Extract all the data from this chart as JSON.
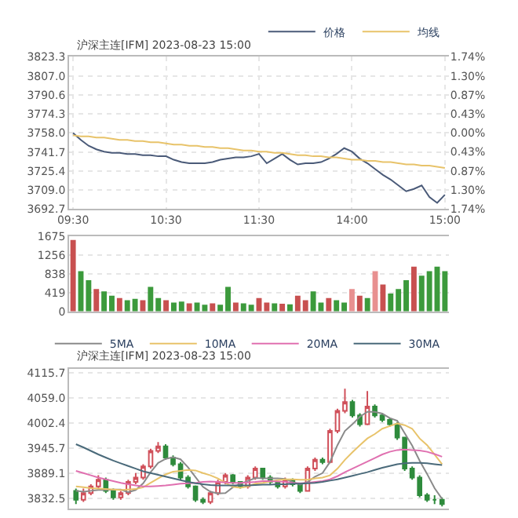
{
  "chart_data": [
    {
      "type": "line",
      "title": "沪深主连[IFM] 2023-08-23 15:00",
      "legend": "top right",
      "grid": true,
      "marker": "none",
      "categories": [
        "09:30",
        null,
        null,
        null,
        null,
        null,
        null,
        null,
        null,
        null,
        null,
        null,
        "10:30",
        null,
        null,
        null,
        null,
        null,
        null,
        null,
        null,
        null,
        null,
        null,
        "11:30",
        null,
        null,
        null,
        null,
        null,
        null,
        null,
        null,
        null,
        null,
        null,
        "14:00",
        null,
        null,
        null,
        null,
        null,
        null,
        null,
        null,
        null,
        null,
        null,
        "15:00"
      ],
      "series": [
        {
          "name": "价格",
          "color": "#4a5a78",
          "values": [
            3758,
            3752,
            3747,
            3744,
            3742,
            3741,
            3741,
            3740,
            3740,
            3739,
            3739,
            3738,
            3738,
            3735,
            3733,
            3732,
            3732,
            3732,
            3733,
            3735,
            3736,
            3737,
            3737,
            3738,
            3740,
            3732,
            3736,
            3740,
            3735,
            3731,
            3732,
            3732,
            3733,
            3736,
            3740,
            3745,
            3742,
            3736,
            3732,
            3727,
            3722,
            3718,
            3713,
            3708,
            3710,
            3713,
            3703,
            3698,
            3705
          ]
        },
        {
          "name": "均线",
          "color": "#e8c36a",
          "values": [
            3756,
            3755,
            3755,
            3754,
            3754,
            3753,
            3752,
            3752,
            3751,
            3751,
            3750,
            3750,
            3749,
            3748,
            3748,
            3747,
            3747,
            3746,
            3746,
            3745,
            3745,
            3744,
            3743,
            3743,
            3742,
            3742,
            3741,
            3741,
            3740,
            3739,
            3739,
            3738,
            3738,
            3737,
            3737,
            3736,
            3735,
            3735,
            3734,
            3734,
            3733,
            3733,
            3732,
            3731,
            3731,
            3730,
            3730,
            3729,
            3728
          ]
        }
      ],
      "ylim": [
        3692.7,
        3823.3
      ],
      "yticks": [
        3692.7,
        {
          "value": 3709,
          "label": "3709.0"
        },
        3725.4,
        3741.7,
        {
          "value": 3758,
          "label": "3758.0"
        },
        3774.3,
        3790.6,
        {
          "value": 3807,
          "label": "3807.0"
        },
        3823.3
      ],
      "y2lim": [
        -1.74,
        1.74
      ],
      "y2ticks": [
        {
          "value": -1.74,
          "label": "1.74%"
        },
        {
          "value": -1.3,
          "label": "1.30%"
        },
        {
          "value": -0.87,
          "label": "0.87%"
        },
        {
          "value": -0.43,
          "label": "0.43%"
        },
        {
          "value": 0,
          "label": "0.00%"
        },
        {
          "value": 0.43,
          "label": "0.43%"
        },
        {
          "value": 0.87,
          "label": "0.87%"
        },
        {
          "value": 1.3,
          "label": "1.30%"
        },
        {
          "value": 1.74,
          "label": "1.74%"
        }
      ]
    },
    {
      "type": "bar",
      "tick_labels": "y",
      "grid": true,
      "categories": [
        null,
        null,
        null,
        null,
        null,
        null,
        null,
        null,
        null,
        null,
        null,
        null,
        null,
        null,
        null,
        null,
        null,
        null,
        null,
        null,
        null,
        null,
        null,
        null,
        null,
        null,
        null,
        null,
        null,
        null,
        null,
        null,
        null,
        null,
        null,
        null,
        null,
        null,
        null,
        null,
        null,
        null,
        null,
        null,
        null,
        null,
        null,
        null,
        null
      ],
      "values": [
        1600,
        900,
        700,
        500,
        450,
        350,
        300,
        250,
        280,
        250,
        550,
        300,
        250,
        200,
        220,
        180,
        200,
        150,
        180,
        150,
        550,
        200,
        180,
        150,
        300,
        200,
        180,
        170,
        160,
        350,
        250,
        450,
        200,
        300,
        250,
        200,
        500,
        350,
        300,
        900,
        600,
        400,
        500,
        700,
        1000,
        800,
        900,
        1000,
        900
      ],
      "colors": [
        "#c85050",
        "#3c9a3c",
        "#3c9a3c",
        "#c85050",
        "#3c9a3c",
        "#3c9a3c",
        "#c85050",
        "#3c9a3c",
        "#3c9a3c",
        "#c85050",
        "#3c9a3c",
        "#3c9a3c",
        "#c85050",
        "#3c9a3c",
        "#3c9a3c",
        "#c85050",
        "#3c9a3c",
        "#3c9a3c",
        "#c85050",
        "#3c9a3c",
        "#3c9a3c",
        "#c85050",
        "#3c9a3c",
        "#3c9a3c",
        "#c85050",
        "#c85050",
        "#3c9a3c",
        "#c85050",
        "#3c9a3c",
        "#c85050",
        "#c85050",
        "#3c9a3c",
        "#3c9a3c",
        "#c85050",
        "#3c9a3c",
        "#3c9a3c",
        "#e89090",
        "#c85050",
        "#3c9a3c",
        "#e89090",
        "#c85050",
        "#3c9a3c",
        "#3c9a3c",
        "#3c9a3c",
        "#c85050",
        "#3c9a3c",
        "#3c9a3c",
        "#3c9a3c",
        "#3c9a3c"
      ],
      "ylim": [
        0,
        1675
      ],
      "yticks": [
        0,
        419,
        838,
        1256,
        1675
      ]
    },
    {
      "type": "candlestick",
      "title": "沪深主连[IFM] 2023-08-23 15:00",
      "legend": "top right",
      "grid": true,
      "categories": [
        null,
        null,
        null,
        null,
        null,
        null,
        null,
        null,
        null,
        null,
        null,
        null,
        null,
        null,
        null,
        null,
        null,
        null,
        null,
        null,
        null,
        null,
        null,
        null,
        null,
        null,
        null,
        null,
        null,
        null,
        null,
        null,
        null,
        null,
        null,
        null,
        null,
        null,
        null,
        null,
        null,
        null,
        null,
        null,
        null,
        null,
        null,
        null,
        null,
        null
      ],
      "ohlc": [
        [
          3850,
          3855,
          3820,
          3830
        ],
        [
          3830,
          3855,
          3825,
          3845
        ],
        [
          3845,
          3865,
          3840,
          3860
        ],
        [
          3860,
          3885,
          3855,
          3875
        ],
        [
          3875,
          3880,
          3845,
          3850
        ],
        [
          3850,
          3855,
          3830,
          3835
        ],
        [
          3835,
          3850,
          3830,
          3845
        ],
        [
          3845,
          3875,
          3840,
          3870
        ],
        [
          3870,
          3890,
          3865,
          3880
        ],
        [
          3880,
          3910,
          3875,
          3905
        ],
        [
          3905,
          3945,
          3900,
          3940
        ],
        [
          3940,
          3960,
          3935,
          3950
        ],
        [
          3950,
          3955,
          3920,
          3925
        ],
        [
          3925,
          3930,
          3905,
          3910
        ],
        [
          3910,
          3915,
          3875,
          3880
        ],
        [
          3880,
          3885,
          3855,
          3860
        ],
        [
          3860,
          3862,
          3825,
          3830
        ],
        [
          3830,
          3835,
          3820,
          3825
        ],
        [
          3825,
          3850,
          3820,
          3845
        ],
        [
          3845,
          3875,
          3840,
          3870
        ],
        [
          3870,
          3890,
          3865,
          3885
        ],
        [
          3885,
          3888,
          3865,
          3870
        ],
        [
          3870,
          3872,
          3855,
          3860
        ],
        [
          3860,
          3885,
          3855,
          3880
        ],
        [
          3880,
          3905,
          3875,
          3900
        ],
        [
          3900,
          3902,
          3875,
          3880
        ],
        [
          3880,
          3885,
          3865,
          3870
        ],
        [
          3870,
          3872,
          3855,
          3860
        ],
        [
          3860,
          3880,
          3855,
          3875
        ],
        [
          3875,
          3878,
          3860,
          3865
        ],
        [
          3865,
          3868,
          3845,
          3850
        ],
        [
          3850,
          3905,
          3848,
          3900
        ],
        [
          3900,
          3925,
          3895,
          3920
        ],
        [
          3920,
          3925,
          3910,
          3915
        ],
        [
          3915,
          3990,
          3912,
          3985
        ],
        [
          3985,
          4035,
          3980,
          4030
        ],
        [
          4030,
          4080,
          4025,
          4050
        ],
        [
          4050,
          4055,
          4015,
          4020
        ],
        [
          4020,
          4025,
          3995,
          4000
        ],
        [
          4000,
          4075,
          3998,
          4040
        ],
        [
          4040,
          4045,
          4015,
          4020
        ],
        [
          4020,
          4025,
          4005,
          4010
        ],
        [
          4010,
          4015,
          3995,
          4000
        ],
        [
          4000,
          4005,
          3965,
          3970
        ],
        [
          3970,
          3972,
          3895,
          3900
        ],
        [
          3900,
          3905,
          3875,
          3880
        ],
        [
          3880,
          3885,
          3835,
          3840
        ],
        [
          3840,
          3845,
          3825,
          3830
        ],
        [
          3830,
          3840,
          3820,
          3830
        ],
        [
          3830,
          3835,
          3815,
          3820
        ]
      ],
      "series": [
        {
          "name": "5MA",
          "type": "line",
          "color": "#8a8a8a",
          "values": [
            3850,
            3848,
            3850,
            3852,
            3852,
            3853,
            3853,
            3847,
            3852,
            3867,
            3892,
            3913,
            3922,
            3926,
            3921,
            3903,
            3881,
            3859,
            3848,
            3844,
            3845,
            3858,
            3866,
            3872,
            3879,
            3878,
            3878,
            3878,
            3877,
            3870,
            3864,
            3870,
            3882,
            3890,
            3915,
            3953,
            3985,
            4000,
            4017,
            4028,
            4028,
            4024,
            4014,
            4008,
            3980,
            3952,
            3918,
            3888,
            3856,
            3832
          ]
        },
        {
          "name": "10MA",
          "type": "line",
          "color": "#e8c36a",
          "values": [
            3860,
            3858,
            3856,
            3855,
            3854,
            3853,
            3852,
            3853,
            3854,
            3858,
            3868,
            3878,
            3887,
            3893,
            3895,
            3897,
            3896,
            3890,
            3885,
            3878,
            3868,
            3859,
            3857,
            3860,
            3866,
            3868,
            3871,
            3874,
            3876,
            3876,
            3875,
            3875,
            3878,
            3880,
            3885,
            3900,
            3920,
            3937,
            3953,
            3968,
            3978,
            3990,
            3996,
            4002,
            3998,
            3990,
            3968,
            3953,
            3932,
            3910
          ]
        },
        {
          "name": "20MA",
          "type": "line",
          "color": "#e070b0",
          "values": [
            3895,
            3890,
            3885,
            3880,
            3876,
            3872,
            3868,
            3865,
            3862,
            3860,
            3860,
            3861,
            3862,
            3864,
            3866,
            3867,
            3868,
            3870,
            3871,
            3870,
            3869,
            3868,
            3868,
            3869,
            3870,
            3872,
            3872,
            3871,
            3870,
            3868,
            3867,
            3868,
            3870,
            3872,
            3876,
            3883,
            3892,
            3900,
            3908,
            3916,
            3924,
            3932,
            3938,
            3942,
            3943,
            3942,
            3941,
            3938,
            3933,
            3927
          ]
        },
        {
          "name": "30MA",
          "type": "line",
          "color": "#4a6a7a",
          "values": [
            3955,
            3948,
            3940,
            3932,
            3925,
            3918,
            3912,
            3906,
            3900,
            3894,
            3890,
            3886,
            3882,
            3878,
            3874,
            3870,
            3867,
            3865,
            3863,
            3862,
            3862,
            3862,
            3862,
            3862,
            3863,
            3864,
            3864,
            3865,
            3865,
            3866,
            3866,
            3867,
            3868,
            3870,
            3873,
            3876,
            3880,
            3884,
            3888,
            3892,
            3897,
            3902,
            3906,
            3910,
            3912,
            3913,
            3913,
            3912,
            3910,
            3908
          ]
        }
      ],
      "ylim": [
        3810,
        4125
      ],
      "yticks": [
        3832.5,
        3889.1,
        3945.7,
        4002.4,
        {
          "value": 4059,
          "label": "4059.0"
        },
        4115.7
      ]
    }
  ]
}
